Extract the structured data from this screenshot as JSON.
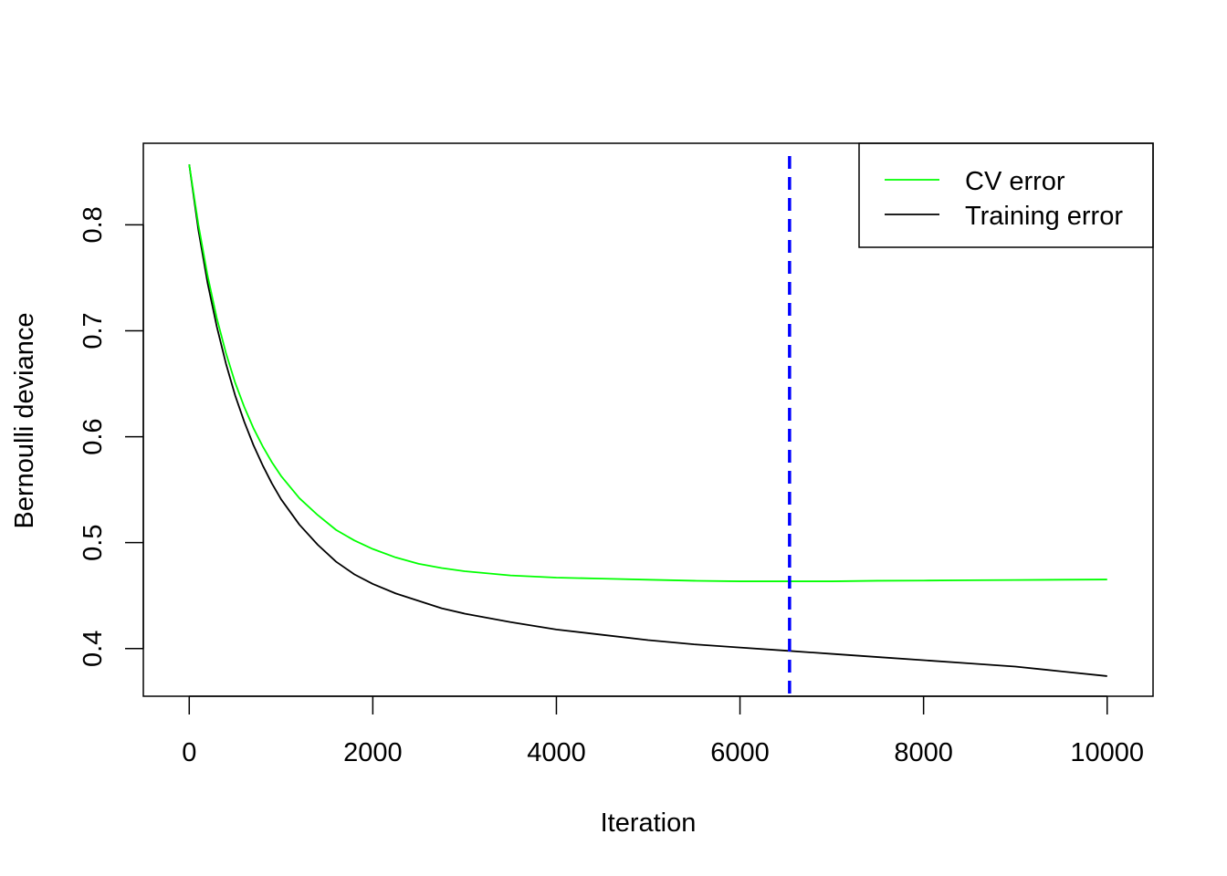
{
  "chart_data": {
    "type": "line",
    "title": "",
    "xlabel": "Iteration",
    "ylabel": "Bernoulli deviance",
    "xlim": [
      -500,
      10500
    ],
    "ylim": [
      0.355,
      0.877
    ],
    "xticks": [
      0,
      2000,
      4000,
      6000,
      8000,
      10000
    ],
    "xtick_labels": [
      "0",
      "2000",
      "4000",
      "6000",
      "8000",
      "10000"
    ],
    "yticks": [
      0.4,
      0.5,
      0.6,
      0.7,
      0.8
    ],
    "ytick_labels": [
      "0.4",
      "0.5",
      "0.6",
      "0.7",
      "0.8"
    ],
    "grid": false,
    "legend_position": "top-right",
    "series": [
      {
        "name": "CV error",
        "color": "#00ff00",
        "x": [
          0,
          100,
          200,
          300,
          400,
          500,
          600,
          700,
          800,
          900,
          1000,
          1200,
          1400,
          1600,
          1800,
          2000,
          2250,
          2500,
          2750,
          3000,
          3500,
          4000,
          4500,
          5000,
          5500,
          6000,
          6500,
          7000,
          7500,
          8000,
          8500,
          9000,
          9500,
          10000
        ],
        "values": [
          0.857,
          0.8,
          0.752,
          0.712,
          0.679,
          0.651,
          0.628,
          0.608,
          0.591,
          0.576,
          0.563,
          0.542,
          0.526,
          0.512,
          0.502,
          0.494,
          0.486,
          0.48,
          0.476,
          0.473,
          0.469,
          0.467,
          0.466,
          0.465,
          0.464,
          0.4635,
          0.4635,
          0.4635,
          0.464,
          0.4642,
          0.4645,
          0.4647,
          0.465,
          0.4652
        ]
      },
      {
        "name": "Training error",
        "color": "#000000",
        "x": [
          0,
          100,
          200,
          300,
          400,
          500,
          600,
          700,
          800,
          900,
          1000,
          1200,
          1400,
          1600,
          1800,
          2000,
          2250,
          2500,
          2750,
          3000,
          3500,
          4000,
          4500,
          5000,
          5500,
          6000,
          6500,
          7000,
          7500,
          8000,
          8500,
          9000,
          9500,
          10000
        ],
        "values": [
          0.857,
          0.795,
          0.745,
          0.704,
          0.669,
          0.639,
          0.614,
          0.592,
          0.573,
          0.556,
          0.541,
          0.517,
          0.498,
          0.482,
          0.47,
          0.461,
          0.452,
          0.445,
          0.438,
          0.433,
          0.425,
          0.418,
          0.413,
          0.408,
          0.404,
          0.401,
          0.398,
          0.395,
          0.392,
          0.389,
          0.386,
          0.383,
          0.3785,
          0.374
        ]
      }
    ],
    "reference_line": {
      "x": 6540,
      "color": "#0000ff",
      "style": "dashed"
    }
  }
}
